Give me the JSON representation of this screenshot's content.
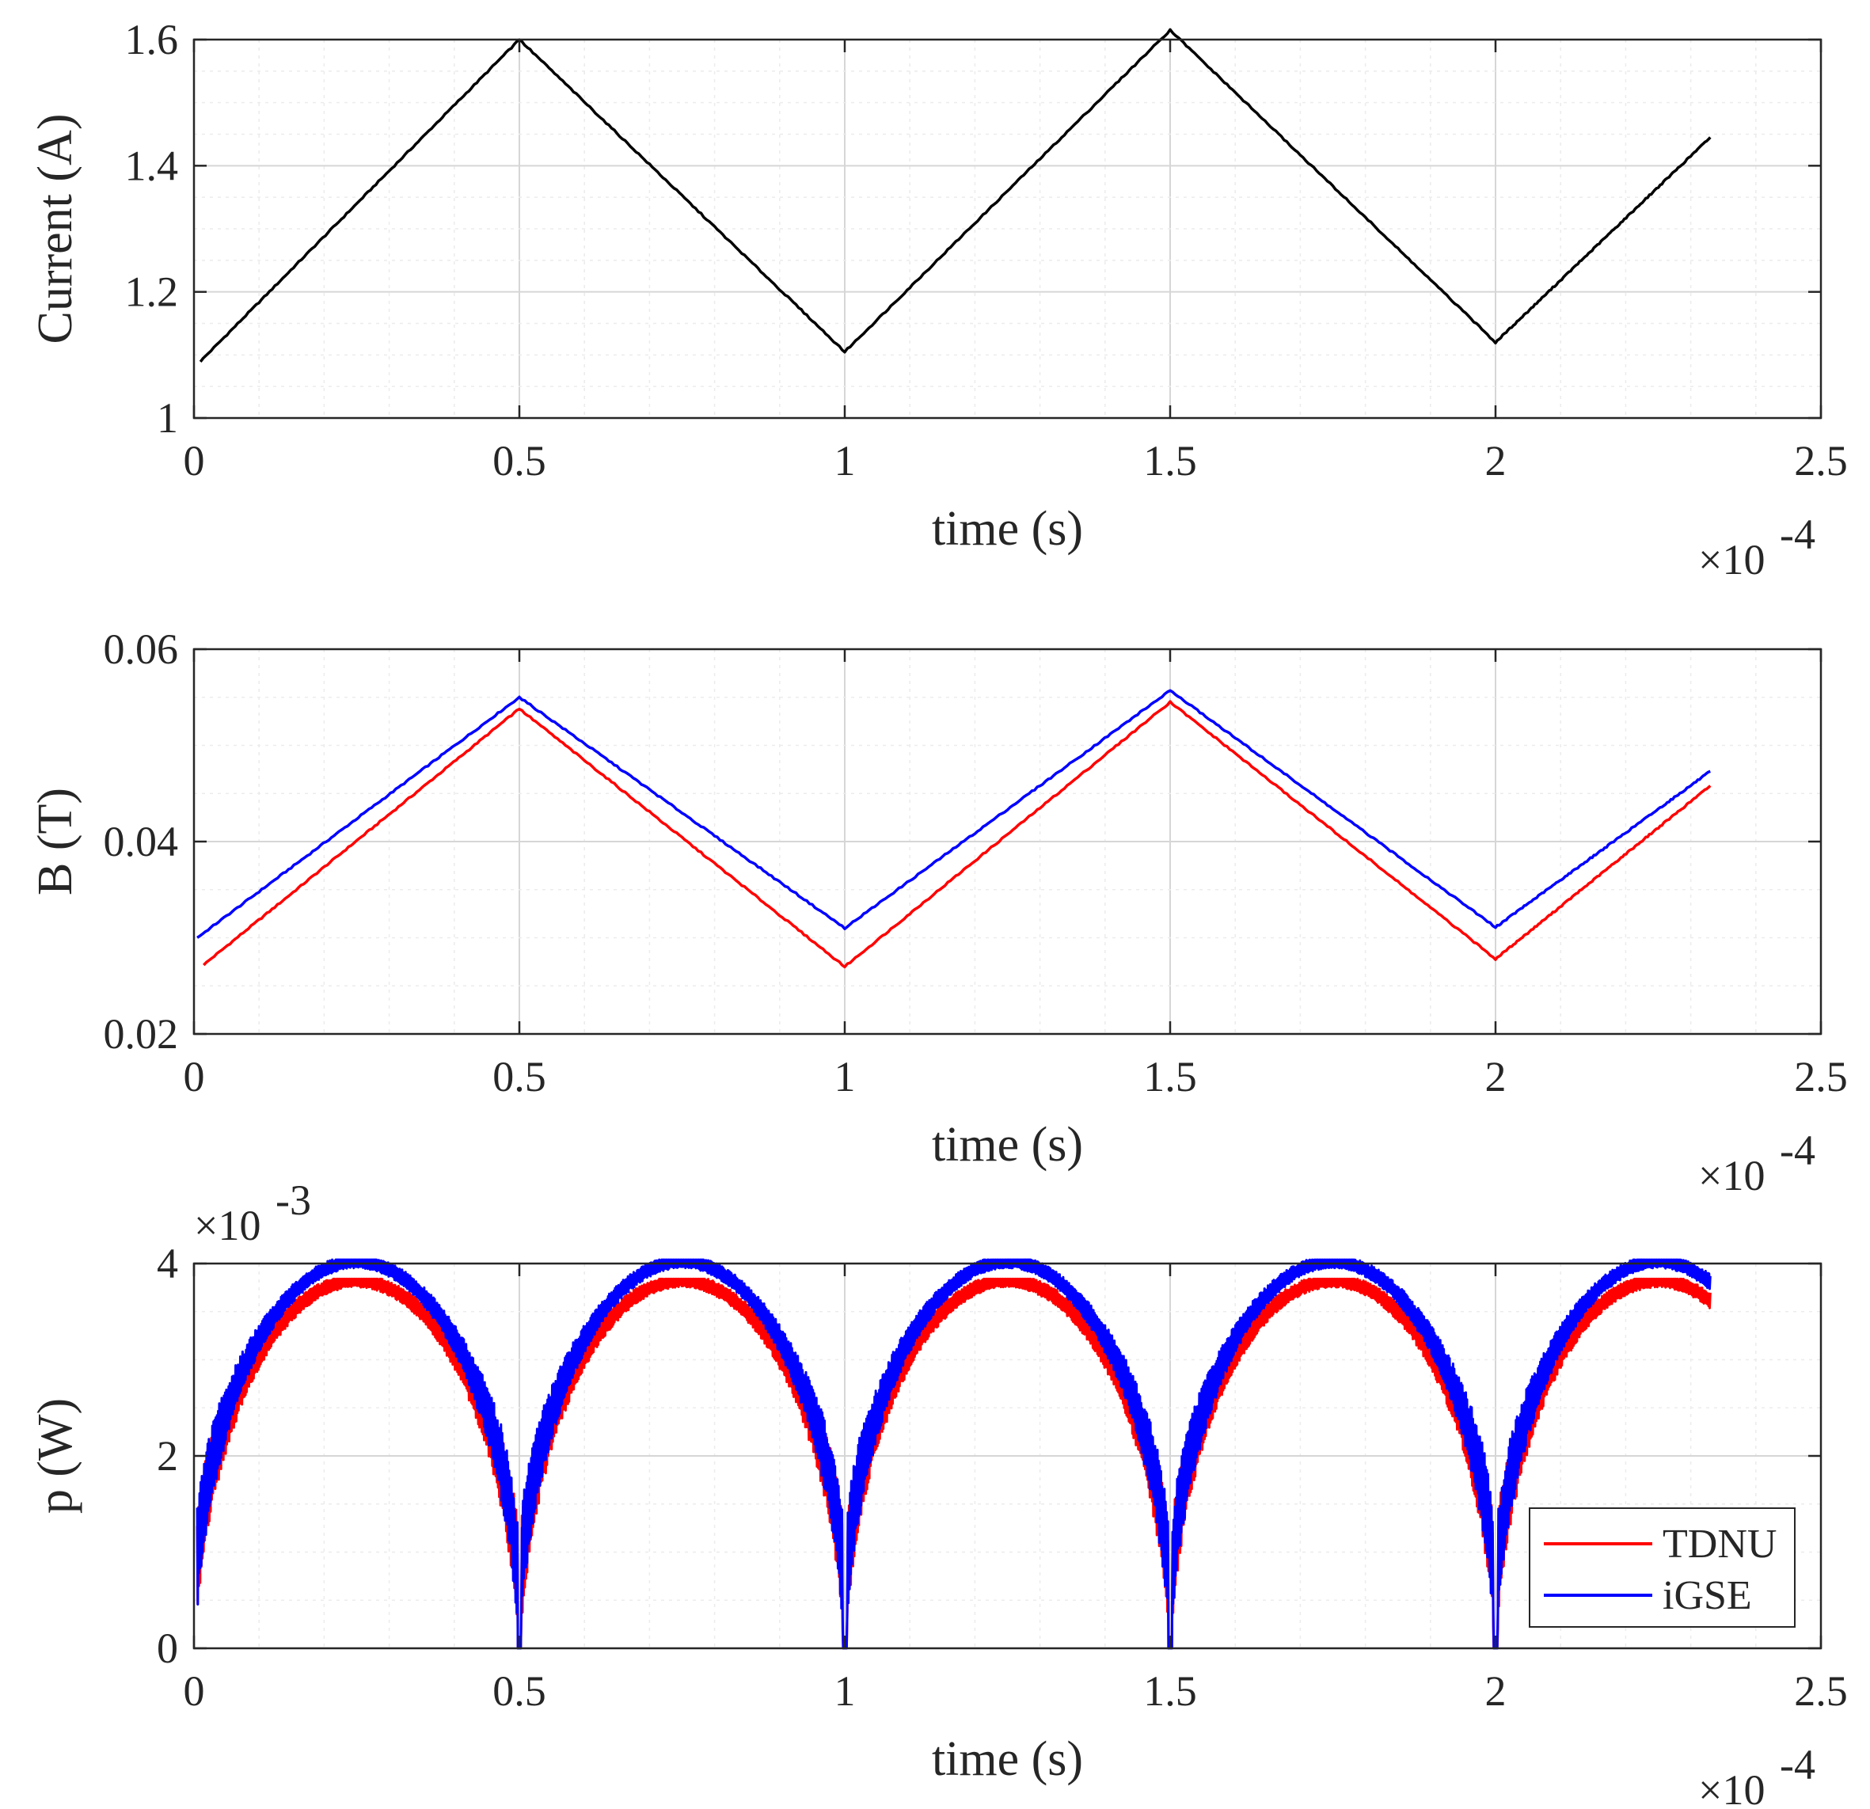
{
  "chart_data": [
    {
      "type": "line",
      "xlabel": "time (s)",
      "ylabel": "Current (A)",
      "x_exponent_label": "×10",
      "x_exponent_power": "-4",
      "xlim": [
        0,
        2.5
      ],
      "ylim": [
        1,
        1.6
      ],
      "xticks": [
        0,
        0.5,
        1,
        1.5,
        2,
        2.5
      ],
      "xtick_labels": [
        "0",
        "0.5",
        "1",
        "1.5",
        "2",
        "2.5"
      ],
      "yticks": [
        1,
        1.2,
        1.4,
        1.6
      ],
      "ytick_labels": [
        "1",
        "1.2",
        "1.4",
        "1.6"
      ],
      "grid": true,
      "series": [
        {
          "name": "Current",
          "color": "#000000",
          "x": [
            0.01,
            0.5,
            1.0,
            1.5,
            2.0,
            2.33
          ],
          "y": [
            1.09,
            1.6,
            1.105,
            1.615,
            1.12,
            1.445
          ]
        }
      ]
    },
    {
      "type": "line",
      "xlabel": "time (s)",
      "ylabel": "B (T)",
      "x_exponent_label": "×10",
      "x_exponent_power": "-4",
      "xlim": [
        0,
        2.5
      ],
      "ylim": [
        0.02,
        0.06
      ],
      "xticks": [
        0,
        0.5,
        1,
        1.5,
        2,
        2.5
      ],
      "xtick_labels": [
        "0",
        "0.5",
        "1",
        "1.5",
        "2",
        "2.5"
      ],
      "yticks": [
        0.02,
        0.04,
        0.06
      ],
      "ytick_labels": [
        "0.02",
        "0.04",
        "0.06"
      ],
      "grid": true,
      "series": [
        {
          "name": "TDNU",
          "color": "#ff0000",
          "x": [
            0.015,
            0.5,
            1.0,
            1.5,
            2.0,
            2.33
          ],
          "y": [
            0.0272,
            0.0538,
            0.027,
            0.0545,
            0.0278,
            0.0458
          ]
        },
        {
          "name": "iGSE",
          "color": "#0000ff",
          "x": [
            0.005,
            0.5,
            1.0,
            1.5,
            2.0,
            2.33
          ],
          "y": [
            0.03,
            0.055,
            0.031,
            0.0557,
            0.0311,
            0.0473
          ]
        }
      ]
    },
    {
      "type": "line",
      "xlabel": "time (s)",
      "ylabel": "p (W)",
      "x_exponent_label": "×10",
      "x_exponent_power": "-4",
      "y_exponent_label": "×10",
      "y_exponent_power": "-3",
      "xlim": [
        0,
        2.5
      ],
      "ylim": [
        0,
        4
      ],
      "xticks": [
        0,
        0.5,
        1,
        1.5,
        2,
        2.5
      ],
      "xtick_labels": [
        "0",
        "0.5",
        "1",
        "1.5",
        "2",
        "2.5"
      ],
      "yticks": [
        0,
        2,
        4
      ],
      "ytick_labels": [
        "0",
        "2",
        "4"
      ],
      "grid": true,
      "legend": {
        "position": "bottom-right",
        "entries": [
          "TDNU",
          "iGSE"
        ]
      },
      "series": [
        {
          "name": "TDNU",
          "color": "#ff0000",
          "peak": 3.82,
          "period": 0.5,
          "x_end": 2.33
        },
        {
          "name": "iGSE",
          "color": "#0000ff",
          "peak": 4.02,
          "period": 0.5,
          "x_end": 2.33
        }
      ]
    }
  ]
}
